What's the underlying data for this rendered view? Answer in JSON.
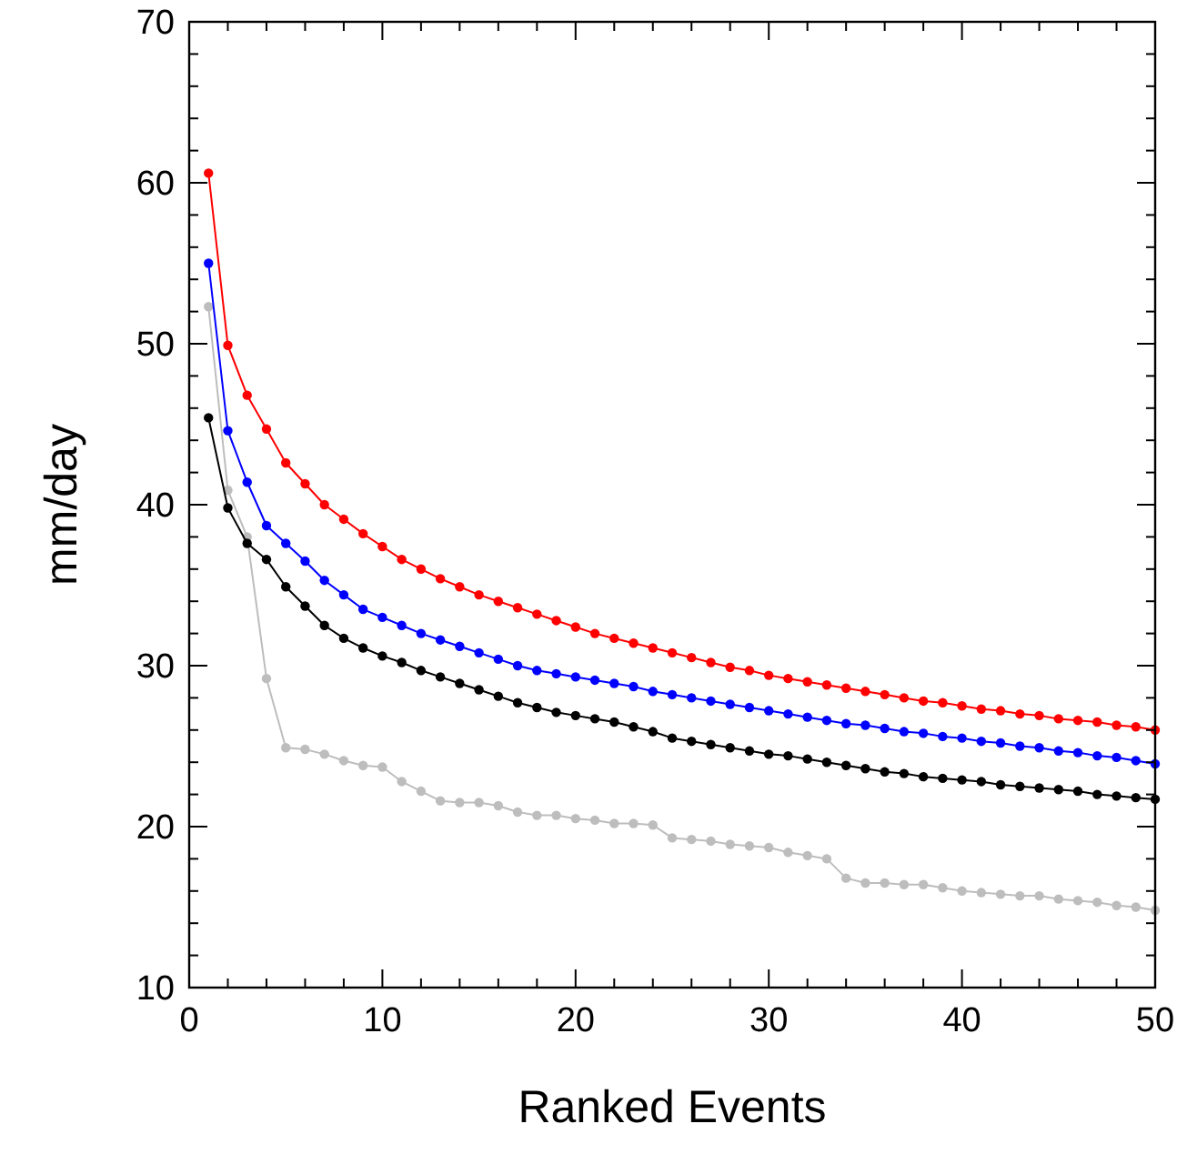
{
  "chart_data": {
    "type": "line",
    "xlabel": "Ranked Events",
    "ylabel": "mm/day",
    "marker": "circle",
    "line_style": "solid",
    "x": [
      1,
      2,
      3,
      4,
      5,
      6,
      7,
      8,
      9,
      10,
      11,
      12,
      13,
      14,
      15,
      16,
      17,
      18,
      19,
      20,
      21,
      22,
      23,
      24,
      25,
      26,
      27,
      28,
      29,
      30,
      31,
      32,
      33,
      34,
      35,
      36,
      37,
      38,
      39,
      40,
      41,
      42,
      43,
      44,
      45,
      46,
      47,
      48,
      49,
      50
    ],
    "xlim": [
      0,
      50
    ],
    "ylim": [
      10,
      70
    ],
    "xticks": [
      0,
      {
        "value": 2,
        "label": null
      },
      {
        "value": 4,
        "label": null
      },
      {
        "value": 6,
        "label": null
      },
      {
        "value": 8,
        "label": null
      },
      10,
      {
        "value": 12,
        "label": null
      },
      {
        "value": 14,
        "label": null
      },
      {
        "value": 16,
        "label": null
      },
      {
        "value": 18,
        "label": null
      },
      20,
      {
        "value": 22,
        "label": null
      },
      {
        "value": 24,
        "label": null
      },
      {
        "value": 26,
        "label": null
      },
      {
        "value": 28,
        "label": null
      },
      30,
      {
        "value": 32,
        "label": null
      },
      {
        "value": 34,
        "label": null
      },
      {
        "value": 36,
        "label": null
      },
      {
        "value": 38,
        "label": null
      },
      40,
      {
        "value": 42,
        "label": null
      },
      {
        "value": 44,
        "label": null
      },
      {
        "value": 46,
        "label": null
      },
      {
        "value": 48,
        "label": null
      },
      50
    ],
    "yticks": [
      10,
      {
        "value": 12,
        "label": null
      },
      {
        "value": 14,
        "label": null
      },
      {
        "value": 16,
        "label": null
      },
      {
        "value": 18,
        "label": null
      },
      20,
      {
        "value": 22,
        "label": null
      },
      {
        "value": 24,
        "label": null
      },
      {
        "value": 26,
        "label": null
      },
      {
        "value": 28,
        "label": null
      },
      30,
      {
        "value": 32,
        "label": null
      },
      {
        "value": 34,
        "label": null
      },
      {
        "value": 36,
        "label": null
      },
      {
        "value": 38,
        "label": null
      },
      40,
      {
        "value": 42,
        "label": null
      },
      {
        "value": 44,
        "label": null
      },
      {
        "value": 46,
        "label": null
      },
      {
        "value": 48,
        "label": null
      },
      50,
      {
        "value": 52,
        "label": null
      },
      {
        "value": 54,
        "label": null
      },
      {
        "value": 56,
        "label": null
      },
      {
        "value": 58,
        "label": null
      },
      60,
      {
        "value": 62,
        "label": null
      },
      {
        "value": 64,
        "label": null
      },
      {
        "value": 66,
        "label": null
      },
      {
        "value": 68,
        "label": null
      },
      70
    ],
    "series": [
      {
        "color": "#bdbdbd",
        "values": [
          52.3,
          40.9,
          38.0,
          29.2,
          24.9,
          24.8,
          24.5,
          24.1,
          23.8,
          23.7,
          22.8,
          22.2,
          21.6,
          21.5,
          21.5,
          21.3,
          20.9,
          20.7,
          20.7,
          20.5,
          20.4,
          20.2,
          20.2,
          20.1,
          19.3,
          19.2,
          19.1,
          18.9,
          18.8,
          18.7,
          18.4,
          18.2,
          18.0,
          16.8,
          16.5,
          16.5,
          16.4,
          16.4,
          16.2,
          16.0,
          15.9,
          15.8,
          15.7,
          15.7,
          15.5,
          15.4,
          15.3,
          15.1,
          15.0,
          14.8
        ]
      },
      {
        "color": "#000000",
        "values": [
          45.4,
          39.8,
          37.6,
          36.6,
          34.9,
          33.7,
          32.5,
          31.7,
          31.1,
          30.6,
          30.2,
          29.7,
          29.3,
          28.9,
          28.5,
          28.1,
          27.7,
          27.4,
          27.1,
          26.9,
          26.7,
          26.5,
          26.2,
          25.9,
          25.5,
          25.3,
          25.1,
          24.9,
          24.7,
          24.5,
          24.4,
          24.2,
          24.0,
          23.8,
          23.6,
          23.4,
          23.3,
          23.1,
          23.0,
          22.9,
          22.8,
          22.6,
          22.5,
          22.4,
          22.3,
          22.2,
          22.0,
          21.9,
          21.8,
          21.7
        ]
      },
      {
        "color": "#0000ff",
        "values": [
          55.0,
          44.6,
          41.4,
          38.7,
          37.6,
          36.5,
          35.3,
          34.4,
          33.5,
          33.0,
          32.5,
          32.0,
          31.6,
          31.2,
          30.8,
          30.4,
          30.0,
          29.7,
          29.5,
          29.3,
          29.1,
          28.9,
          28.7,
          28.4,
          28.2,
          28.0,
          27.8,
          27.6,
          27.4,
          27.2,
          27.0,
          26.8,
          26.6,
          26.4,
          26.3,
          26.1,
          25.9,
          25.8,
          25.6,
          25.5,
          25.3,
          25.2,
          25.0,
          24.9,
          24.7,
          24.6,
          24.4,
          24.3,
          24.1,
          23.9
        ]
      },
      {
        "color": "#ff0000",
        "values": [
          60.6,
          49.9,
          46.8,
          44.7,
          42.6,
          41.3,
          40.0,
          39.1,
          38.2,
          37.4,
          36.6,
          36.0,
          35.4,
          34.9,
          34.4,
          34.0,
          33.6,
          33.2,
          32.8,
          32.4,
          32.0,
          31.7,
          31.4,
          31.1,
          30.8,
          30.5,
          30.2,
          29.9,
          29.7,
          29.4,
          29.2,
          29.0,
          28.8,
          28.6,
          28.4,
          28.2,
          28.0,
          27.8,
          27.7,
          27.5,
          27.3,
          27.2,
          27.0,
          26.9,
          26.7,
          26.6,
          26.5,
          26.3,
          26.2,
          26.0
        ]
      }
    ]
  }
}
